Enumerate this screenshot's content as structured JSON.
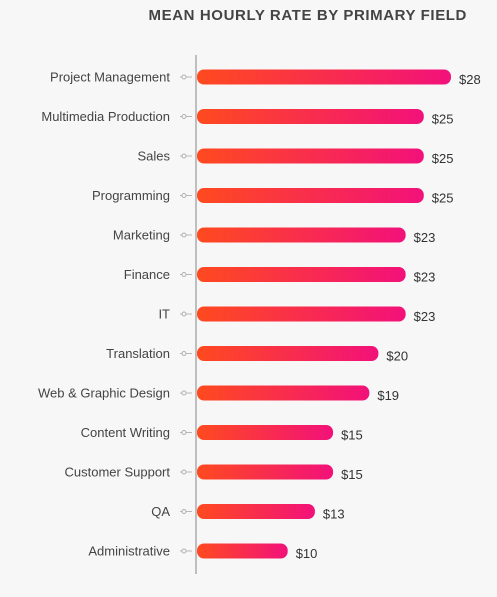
{
  "chart_data": {
    "type": "bar",
    "orientation": "horizontal",
    "title": "MEAN HOURLY RATE BY PRIMARY FIELD",
    "xlabel": "",
    "ylabel": "",
    "xlim": [
      0,
      28
    ],
    "grid": false,
    "legend": "none",
    "value_prefix": "$",
    "categories": [
      "Project Management",
      "Multimedia Production",
      "Sales",
      "Programming",
      "Marketing",
      "Finance",
      "IT",
      "Translation",
      "Web & Graphic Design",
      "Content Writing",
      "Customer Support",
      "QA",
      "Administrative"
    ],
    "values": [
      28,
      25,
      25,
      25,
      23,
      23,
      23,
      20,
      19,
      15,
      15,
      13,
      10
    ],
    "value_labels": [
      "$28",
      "$25",
      "$25",
      "$25",
      "$23",
      "$23",
      "$23",
      "$20",
      "$19",
      "$15",
      "$15",
      "$13",
      "$10"
    ],
    "colors": {
      "bar_gradient_start": "#ff4a1f",
      "bar_gradient_end": "#f2117a",
      "axis": "#9a9a9a",
      "text": "#444444"
    }
  }
}
